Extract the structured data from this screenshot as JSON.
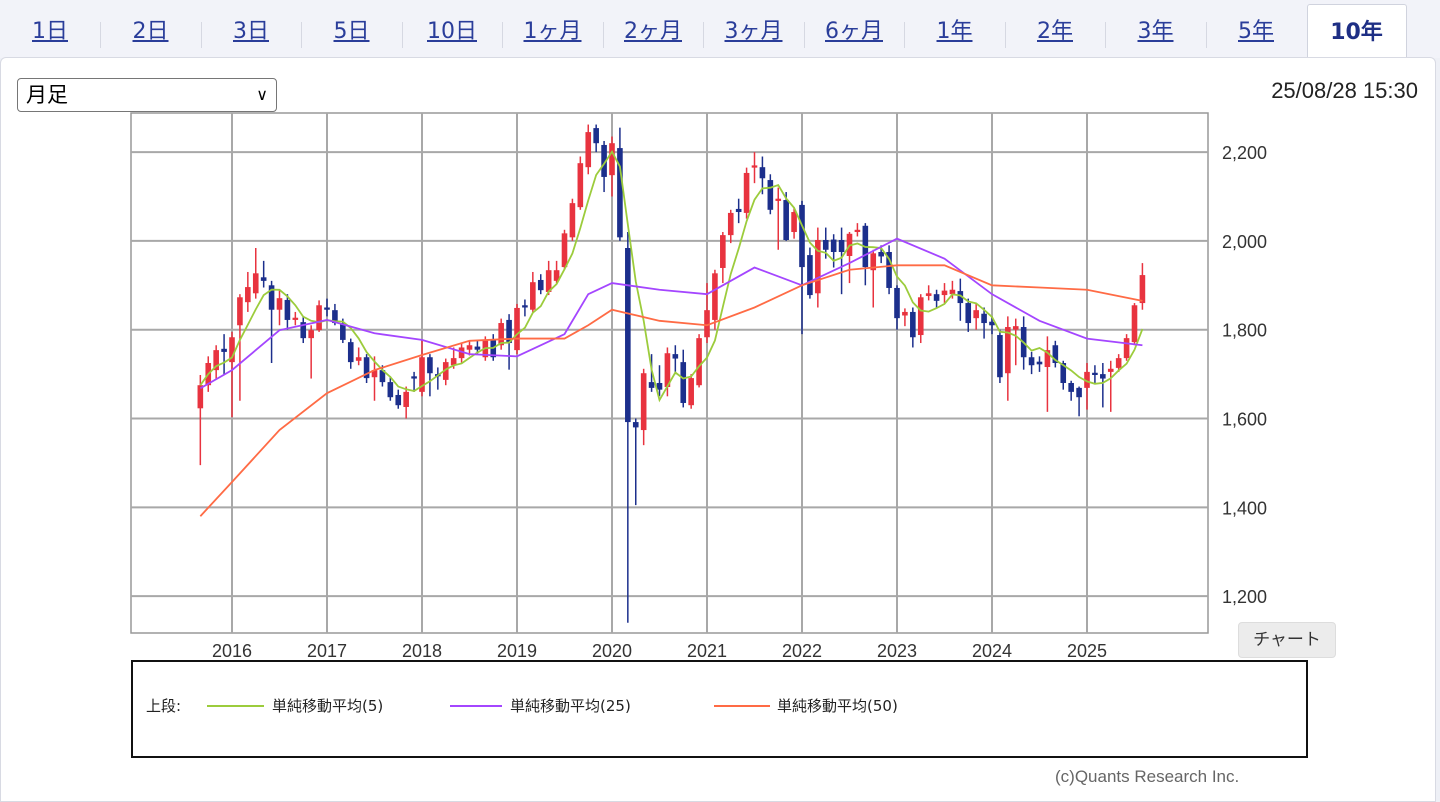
{
  "tabs": [
    "1日",
    "2日",
    "3日",
    "5日",
    "10日",
    "1ヶ月",
    "2ヶ月",
    "3ヶ月",
    "6ヶ月",
    "1年",
    "2年",
    "3年",
    "5年",
    "10年"
  ],
  "active_tab": "10年",
  "period_select": {
    "value": "月足",
    "icon": "chevron-down-icon"
  },
  "timestamp": "25/08/28 15:30",
  "chart_button": "チャート",
  "legend": {
    "prefix": "上段:",
    "items": [
      {
        "label": "単純移動平均(5)",
        "color": "#9ccc3c"
      },
      {
        "label": "単純移動平均(25)",
        "color": "#a446ff"
      },
      {
        "label": "単純移動平均(50)",
        "color": "#ff6b45"
      }
    ]
  },
  "copyright": "(c)Quants Research Inc.",
  "colors": {
    "up": "#e8333f",
    "down": "#1c2f8c",
    "grid": "#a8a8a8"
  },
  "chart_data": {
    "type": "candlestick",
    "interval": "monthly",
    "start_month": "2015-09",
    "ylim": [
      1117,
      2288
    ],
    "yticks": [
      1200,
      1400,
      1600,
      1800,
      2000,
      2200
    ],
    "ytick_labels": [
      "1,200",
      "1,400",
      "1,600",
      "1,800",
      "2,000",
      "2,200"
    ],
    "xtick_labels": [
      "2016",
      "2017",
      "2018",
      "2019",
      "2020",
      "2021",
      "2022",
      "2023",
      "2024",
      "2025"
    ],
    "grid": true,
    "ohlc": [
      [
        1623,
        1698,
        1495,
        1675
      ],
      [
        1675,
        1740,
        1660,
        1725
      ],
      [
        1709,
        1765,
        1690,
        1754
      ],
      [
        1757,
        1790,
        1700,
        1750
      ],
      [
        1727,
        1795,
        1603,
        1783
      ],
      [
        1810,
        1880,
        1640,
        1873
      ],
      [
        1862,
        1930,
        1840,
        1896
      ],
      [
        1882,
        1984,
        1870,
        1927
      ],
      [
        1918,
        1955,
        1895,
        1910
      ],
      [
        1900,
        1910,
        1725,
        1845
      ],
      [
        1845,
        1890,
        1810,
        1871
      ],
      [
        1867,
        1880,
        1800,
        1822
      ],
      [
        1822,
        1840,
        1810,
        1827
      ],
      [
        1817,
        1830,
        1770,
        1781
      ],
      [
        1781,
        1810,
        1690,
        1799
      ],
      [
        1799,
        1866,
        1795,
        1855
      ],
      [
        1850,
        1870,
        1830,
        1845
      ],
      [
        1844,
        1858,
        1810,
        1815
      ],
      [
        1815,
        1825,
        1770,
        1777
      ],
      [
        1772,
        1780,
        1712,
        1727
      ],
      [
        1730,
        1760,
        1720,
        1738
      ],
      [
        1738,
        1745,
        1680,
        1691
      ],
      [
        1693,
        1740,
        1640,
        1709
      ],
      [
        1709,
        1720,
        1672,
        1682
      ],
      [
        1682,
        1695,
        1640,
        1648
      ],
      [
        1653,
        1665,
        1622,
        1630
      ],
      [
        1626,
        1672,
        1600,
        1660
      ],
      [
        1695,
        1705,
        1660,
        1690
      ],
      [
        1660,
        1778,
        1650,
        1738
      ],
      [
        1738,
        1745,
        1650,
        1702
      ],
      [
        1700,
        1715,
        1665,
        1695
      ],
      [
        1687,
        1735,
        1675,
        1727
      ],
      [
        1720,
        1760,
        1712,
        1736
      ],
      [
        1736,
        1770,
        1726,
        1760
      ],
      [
        1755,
        1775,
        1742,
        1765
      ],
      [
        1762,
        1775,
        1745,
        1755
      ],
      [
        1738,
        1785,
        1730,
        1777
      ],
      [
        1777,
        1790,
        1730,
        1738
      ],
      [
        1765,
        1825,
        1755,
        1815
      ],
      [
        1822,
        1835,
        1710,
        1770
      ],
      [
        1754,
        1858,
        1745,
        1849
      ],
      [
        1855,
        1868,
        1830,
        1850
      ],
      [
        1845,
        1930,
        1840,
        1907
      ],
      [
        1912,
        1925,
        1880,
        1889
      ],
      [
        1885,
        1955,
        1878,
        1934
      ],
      [
        1910,
        1955,
        1905,
        1934
      ],
      [
        1941,
        2025,
        1935,
        2017
      ],
      [
        2008,
        2095,
        2000,
        2085
      ],
      [
        2076,
        2190,
        2070,
        2175
      ],
      [
        2166,
        2262,
        2150,
        2245
      ],
      [
        2254,
        2262,
        2200,
        2220
      ],
      [
        2216,
        2225,
        2110,
        2144
      ],
      [
        2148,
        2235,
        2100,
        2220
      ],
      [
        2209,
        2255,
        2000,
        2008
      ],
      [
        1984,
        2020,
        1140,
        1592
      ],
      [
        1592,
        1600,
        1405,
        1580
      ],
      [
        1574,
        1712,
        1540,
        1702
      ],
      [
        1682,
        1745,
        1660,
        1669
      ],
      [
        1680,
        1720,
        1650,
        1665
      ],
      [
        1671,
        1760,
        1650,
        1747
      ],
      [
        1745,
        1765,
        1700,
        1735
      ],
      [
        1727,
        1755,
        1625,
        1635
      ],
      [
        1630,
        1700,
        1622,
        1691
      ],
      [
        1675,
        1790,
        1670,
        1781
      ],
      [
        1783,
        1905,
        1770,
        1844
      ],
      [
        1822,
        1935,
        1800,
        1927
      ],
      [
        1939,
        2020,
        1905,
        2013
      ],
      [
        2013,
        2070,
        1995,
        2063
      ],
      [
        2072,
        2095,
        2040,
        2065
      ],
      [
        2063,
        2165,
        2050,
        2153
      ],
      [
        2165,
        2200,
        2130,
        2170
      ],
      [
        2166,
        2190,
        2105,
        2141
      ],
      [
        2137,
        2150,
        2060,
        2070
      ],
      [
        2090,
        2120,
        1980,
        2095
      ],
      [
        2092,
        2110,
        2000,
        2002
      ],
      [
        2020,
        2075,
        2005,
        2065
      ],
      [
        2081,
        2090,
        1790,
        1941
      ],
      [
        1968,
        1985,
        1870,
        1878
      ],
      [
        1882,
        2030,
        1850,
        2002
      ],
      [
        2002,
        2030,
        1960,
        1980
      ],
      [
        2003,
        2015,
        1940,
        1975
      ],
      [
        2002,
        2030,
        1880,
        1975
      ],
      [
        1966,
        2020,
        1905,
        2016
      ],
      [
        2020,
        2040,
        2010,
        2025
      ],
      [
        2034,
        2040,
        1900,
        1941
      ],
      [
        1934,
        1980,
        1850,
        1972
      ],
      [
        1975,
        1990,
        1950,
        1965
      ],
      [
        1975,
        1990,
        1880,
        1894
      ],
      [
        1894,
        1900,
        1800,
        1826
      ],
      [
        1832,
        1848,
        1808,
        1840
      ],
      [
        1840,
        1850,
        1760,
        1783
      ],
      [
        1788,
        1880,
        1770,
        1873
      ],
      [
        1876,
        1900,
        1866,
        1882
      ],
      [
        1880,
        1890,
        1850,
        1865
      ],
      [
        1878,
        1905,
        1860,
        1888
      ],
      [
        1880,
        1910,
        1870,
        1890
      ],
      [
        1887,
        1915,
        1820,
        1860
      ],
      [
        1860,
        1870,
        1795,
        1815
      ],
      [
        1826,
        1860,
        1800,
        1844
      ],
      [
        1836,
        1850,
        1780,
        1815
      ],
      [
        1818,
        1830,
        1790,
        1810
      ],
      [
        1788,
        1800,
        1680,
        1693
      ],
      [
        1702,
        1830,
        1640,
        1806
      ],
      [
        1800,
        1825,
        1720,
        1808
      ],
      [
        1806,
        1830,
        1710,
        1738
      ],
      [
        1738,
        1750,
        1700,
        1720
      ],
      [
        1728,
        1740,
        1705,
        1722
      ],
      [
        1716,
        1785,
        1615,
        1754
      ],
      [
        1765,
        1775,
        1715,
        1725
      ],
      [
        1725,
        1730,
        1665,
        1680
      ],
      [
        1680,
        1685,
        1640,
        1660
      ],
      [
        1669,
        1672,
        1605,
        1648
      ],
      [
        1669,
        1725,
        1620,
        1705
      ],
      [
        1703,
        1720,
        1680,
        1698
      ],
      [
        1700,
        1725,
        1625,
        1690
      ],
      [
        1705,
        1730,
        1615,
        1712
      ],
      [
        1714,
        1745,
        1705,
        1736
      ],
      [
        1736,
        1790,
        1730,
        1781
      ],
      [
        1772,
        1860,
        1765,
        1855
      ],
      [
        1860,
        1950,
        1845,
        1923
      ]
    ],
    "ma25_points": [
      [
        "2015-09",
        1668
      ],
      [
        "2016-01",
        1709
      ],
      [
        "2016-07",
        1799
      ],
      [
        "2017-01",
        1822
      ],
      [
        "2017-07",
        1792
      ],
      [
        "2018-01",
        1777
      ],
      [
        "2018-07",
        1745
      ],
      [
        "2019-01",
        1740
      ],
      [
        "2019-07",
        1790
      ],
      [
        "2019-10",
        1880
      ],
      [
        "2020-01",
        1905
      ],
      [
        "2020-07",
        1890
      ],
      [
        "2021-01",
        1880
      ],
      [
        "2021-07",
        1940
      ],
      [
        "2022-01",
        1900
      ],
      [
        "2022-07",
        1950
      ],
      [
        "2023-01",
        2005
      ],
      [
        "2023-07",
        1960
      ],
      [
        "2024-01",
        1880
      ],
      [
        "2024-07",
        1820
      ],
      [
        "2025-01",
        1780
      ],
      [
        "2025-08",
        1765
      ]
    ],
    "ma50_points": [
      [
        "2015-09",
        1380
      ],
      [
        "2016-01",
        1457
      ],
      [
        "2016-07",
        1574
      ],
      [
        "2017-01",
        1657
      ],
      [
        "2017-07",
        1709
      ],
      [
        "2018-01",
        1743
      ],
      [
        "2018-07",
        1775
      ],
      [
        "2019-01",
        1780
      ],
      [
        "2019-07",
        1780
      ],
      [
        "2019-10",
        1810
      ],
      [
        "2020-01",
        1845
      ],
      [
        "2020-07",
        1820
      ],
      [
        "2021-01",
        1810
      ],
      [
        "2021-07",
        1850
      ],
      [
        "2022-01",
        1900
      ],
      [
        "2022-07",
        1935
      ],
      [
        "2023-01",
        1945
      ],
      [
        "2023-07",
        1945
      ],
      [
        "2024-01",
        1900
      ],
      [
        "2024-07",
        1895
      ],
      [
        "2025-01",
        1890
      ],
      [
        "2025-08",
        1865
      ]
    ]
  }
}
